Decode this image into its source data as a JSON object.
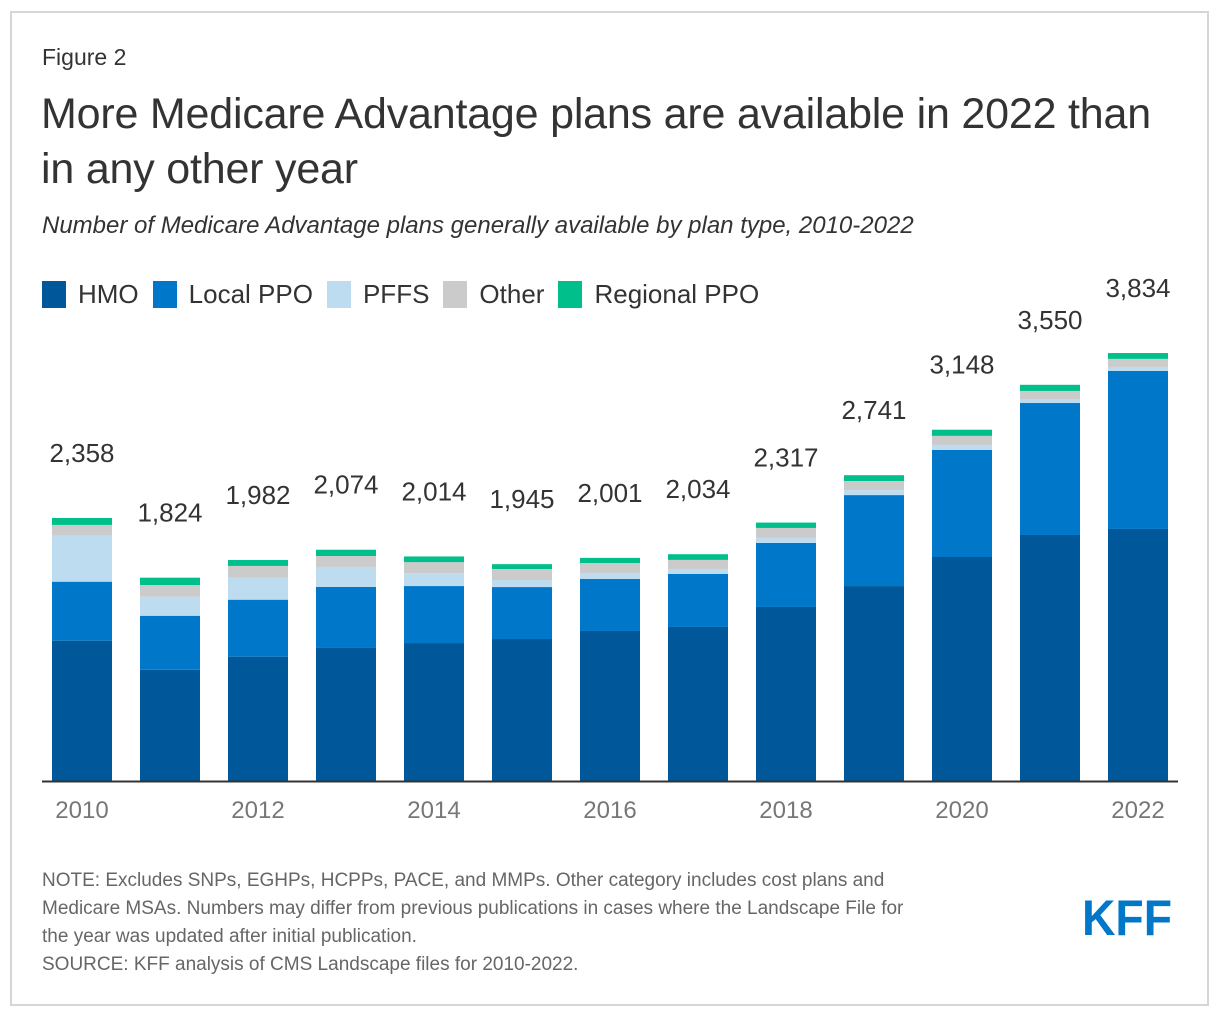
{
  "figure_label": "Figure 2",
  "title": "More Medicare Advantage plans are available in 2022 than in any other year",
  "subtitle": "Number of Medicare Advantage plans generally available by plan type, 2010-2022",
  "colors": {
    "HMO": "#00589a",
    "Local PPO": "#0077c8",
    "PFFS": "#bddcf0",
    "Other": "#cbcbcb",
    "Regional PPO": "#00bf8a",
    "axis": "#333333",
    "tick_text": "#777777",
    "logo": "#0077c8"
  },
  "chart_data": {
    "type": "bar",
    "stacked": true,
    "title": "More Medicare Advantage plans are available in 2022 than in any other year",
    "subtitle": "Number of Medicare Advantage plans generally available by plan type, 2010-2022",
    "xlabel": "",
    "ylabel": "",
    "categories": [
      "2010",
      "2011",
      "2012",
      "2013",
      "2014",
      "2015",
      "2016",
      "2017",
      "2018",
      "2019",
      "2020",
      "2021",
      "2022"
    ],
    "tick_labels": [
      "2010",
      "",
      "2012",
      "",
      "2014",
      "",
      "2016",
      "",
      "2018",
      "",
      "2020",
      "",
      "2022"
    ],
    "ylim": [
      0,
      3900
    ],
    "grid": false,
    "legend_position": "top-left",
    "series": [
      {
        "name": "HMO",
        "values": [
          1260,
          1000,
          1117,
          1195,
          1239,
          1275,
          1347,
          1383,
          1562,
          1749,
          2009,
          2206,
          2260
        ]
      },
      {
        "name": "Local PPO",
        "values": [
          528,
          483,
          510,
          546,
          510,
          465,
          465,
          474,
          573,
          814,
          958,
          1181,
          1414
        ]
      },
      {
        "name": "PFFS",
        "values": [
          412,
          170,
          197,
          179,
          116,
          63,
          54,
          45,
          45,
          45,
          45,
          36,
          36
        ]
      },
      {
        "name": "Other",
        "values": [
          96,
          105,
          105,
          98,
          98,
          98,
          89,
          81,
          89,
          81,
          81,
          72,
          72
        ]
      },
      {
        "name": "Regional PPO",
        "values": [
          62,
          66,
          53,
          56,
          51,
          44,
          46,
          51,
          48,
          52,
          55,
          55,
          52
        ]
      }
    ],
    "totals": [
      2358,
      1824,
      1982,
      2074,
      2014,
      1945,
      2001,
      2034,
      2317,
      2741,
      3148,
      3550,
      3834
    ],
    "total_labels": [
      "2,358",
      "1,824",
      "1,982",
      "2,074",
      "2,014",
      "1,945",
      "2,001",
      "2,034",
      "2,317",
      "2,741",
      "3,148",
      "3,550",
      "3,834"
    ]
  },
  "legend": [
    {
      "label": "HMO"
    },
    {
      "label": "Local PPO"
    },
    {
      "label": "PFFS"
    },
    {
      "label": "Other"
    },
    {
      "label": "Regional PPO"
    }
  ],
  "note_lines": [
    "NOTE: Excludes SNPs, EGHPs, HCPPs, PACE, and MMPs. Other category includes cost plans and",
    "Medicare MSAs. Numbers may differ from previous publications in cases where the Landscape File for",
    "the year was updated after initial publication.",
    "SOURCE: KFF analysis of CMS Landscape files for 2010-2022."
  ],
  "logo_text": "KFF"
}
